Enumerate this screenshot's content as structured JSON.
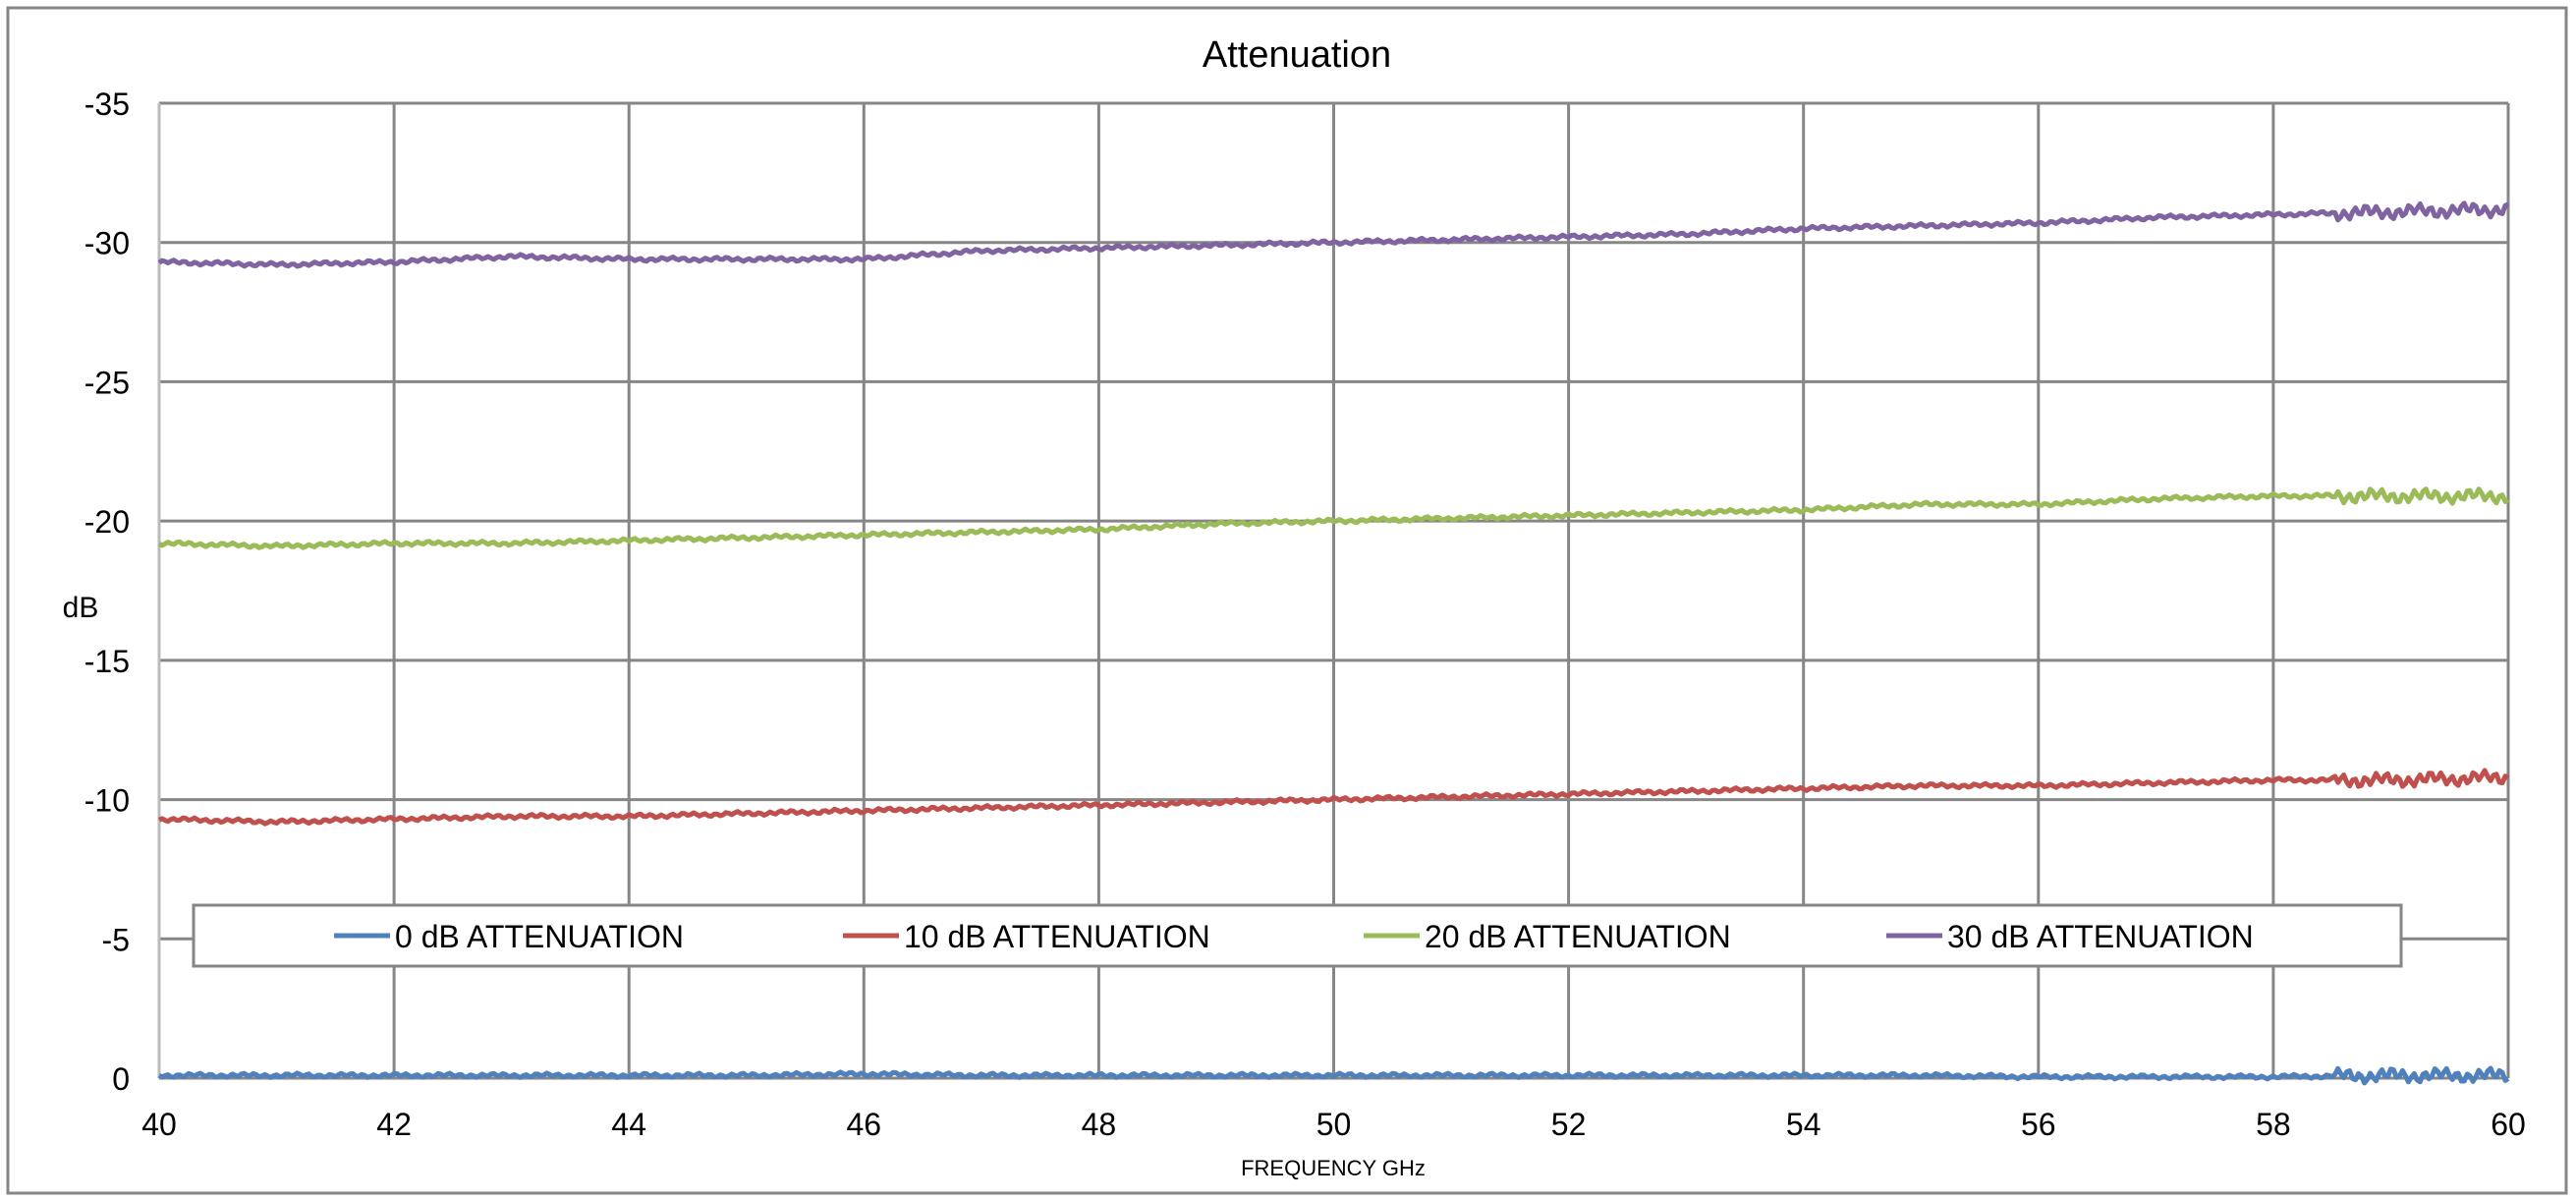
{
  "chart_data": {
    "type": "line",
    "title": "Attenuation",
    "xlabel": "FREQUENCY GHz",
    "ylabel": "dB",
    "xlim": [
      40,
      60
    ],
    "ylim": [
      0,
      -35
    ],
    "y_inverted": true,
    "grid": true,
    "legend_position": "bottom-inside",
    "x_ticks": [
      "40",
      "42",
      "44",
      "46",
      "48",
      "50",
      "52",
      "54",
      "56",
      "58",
      "60"
    ],
    "y_ticks": [
      "0",
      "-5",
      "-10",
      "-15",
      "-20",
      "-25",
      "-30",
      "-35"
    ],
    "x": [
      40,
      41,
      42,
      43,
      44,
      45,
      46,
      47,
      48,
      49,
      50,
      51,
      52,
      53,
      54,
      55,
      56,
      57,
      58,
      59,
      60
    ],
    "series": [
      {
        "name": "0 dB ATTENUATION",
        "color": "#4F81BD",
        "values": [
          -0.1,
          -0.1,
          -0.1,
          -0.1,
          -0.1,
          -0.1,
          -0.15,
          -0.1,
          -0.1,
          -0.1,
          -0.1,
          -0.1,
          -0.1,
          -0.1,
          -0.1,
          -0.1,
          -0.05,
          -0.05,
          -0.05,
          -0.1,
          -0.1
        ]
      },
      {
        "name": "10 dB ATTENUATION",
        "color": "#C0504D",
        "values": [
          -9.3,
          -9.2,
          -9.3,
          -9.4,
          -9.4,
          -9.5,
          -9.6,
          -9.7,
          -9.8,
          -9.9,
          -10.0,
          -10.1,
          -10.2,
          -10.3,
          -10.4,
          -10.5,
          -10.5,
          -10.6,
          -10.7,
          -10.7,
          -10.8
        ]
      },
      {
        "name": "20 dB ATTENUATION",
        "color": "#9BBB59",
        "values": [
          -19.2,
          -19.1,
          -19.2,
          -19.2,
          -19.3,
          -19.4,
          -19.5,
          -19.6,
          -19.7,
          -19.9,
          -20.0,
          -20.1,
          -20.2,
          -20.3,
          -20.4,
          -20.6,
          -20.6,
          -20.8,
          -20.9,
          -20.9,
          -20.9
        ]
      },
      {
        "name": "30 dB ATTENUATION",
        "color": "#8064A2",
        "values": [
          -29.3,
          -29.2,
          -29.3,
          -29.5,
          -29.4,
          -29.4,
          -29.4,
          -29.7,
          -29.8,
          -29.9,
          -30.0,
          -30.1,
          -30.2,
          -30.3,
          -30.5,
          -30.6,
          -30.7,
          -30.9,
          -31.0,
          -31.1,
          -31.2
        ]
      }
    ]
  }
}
